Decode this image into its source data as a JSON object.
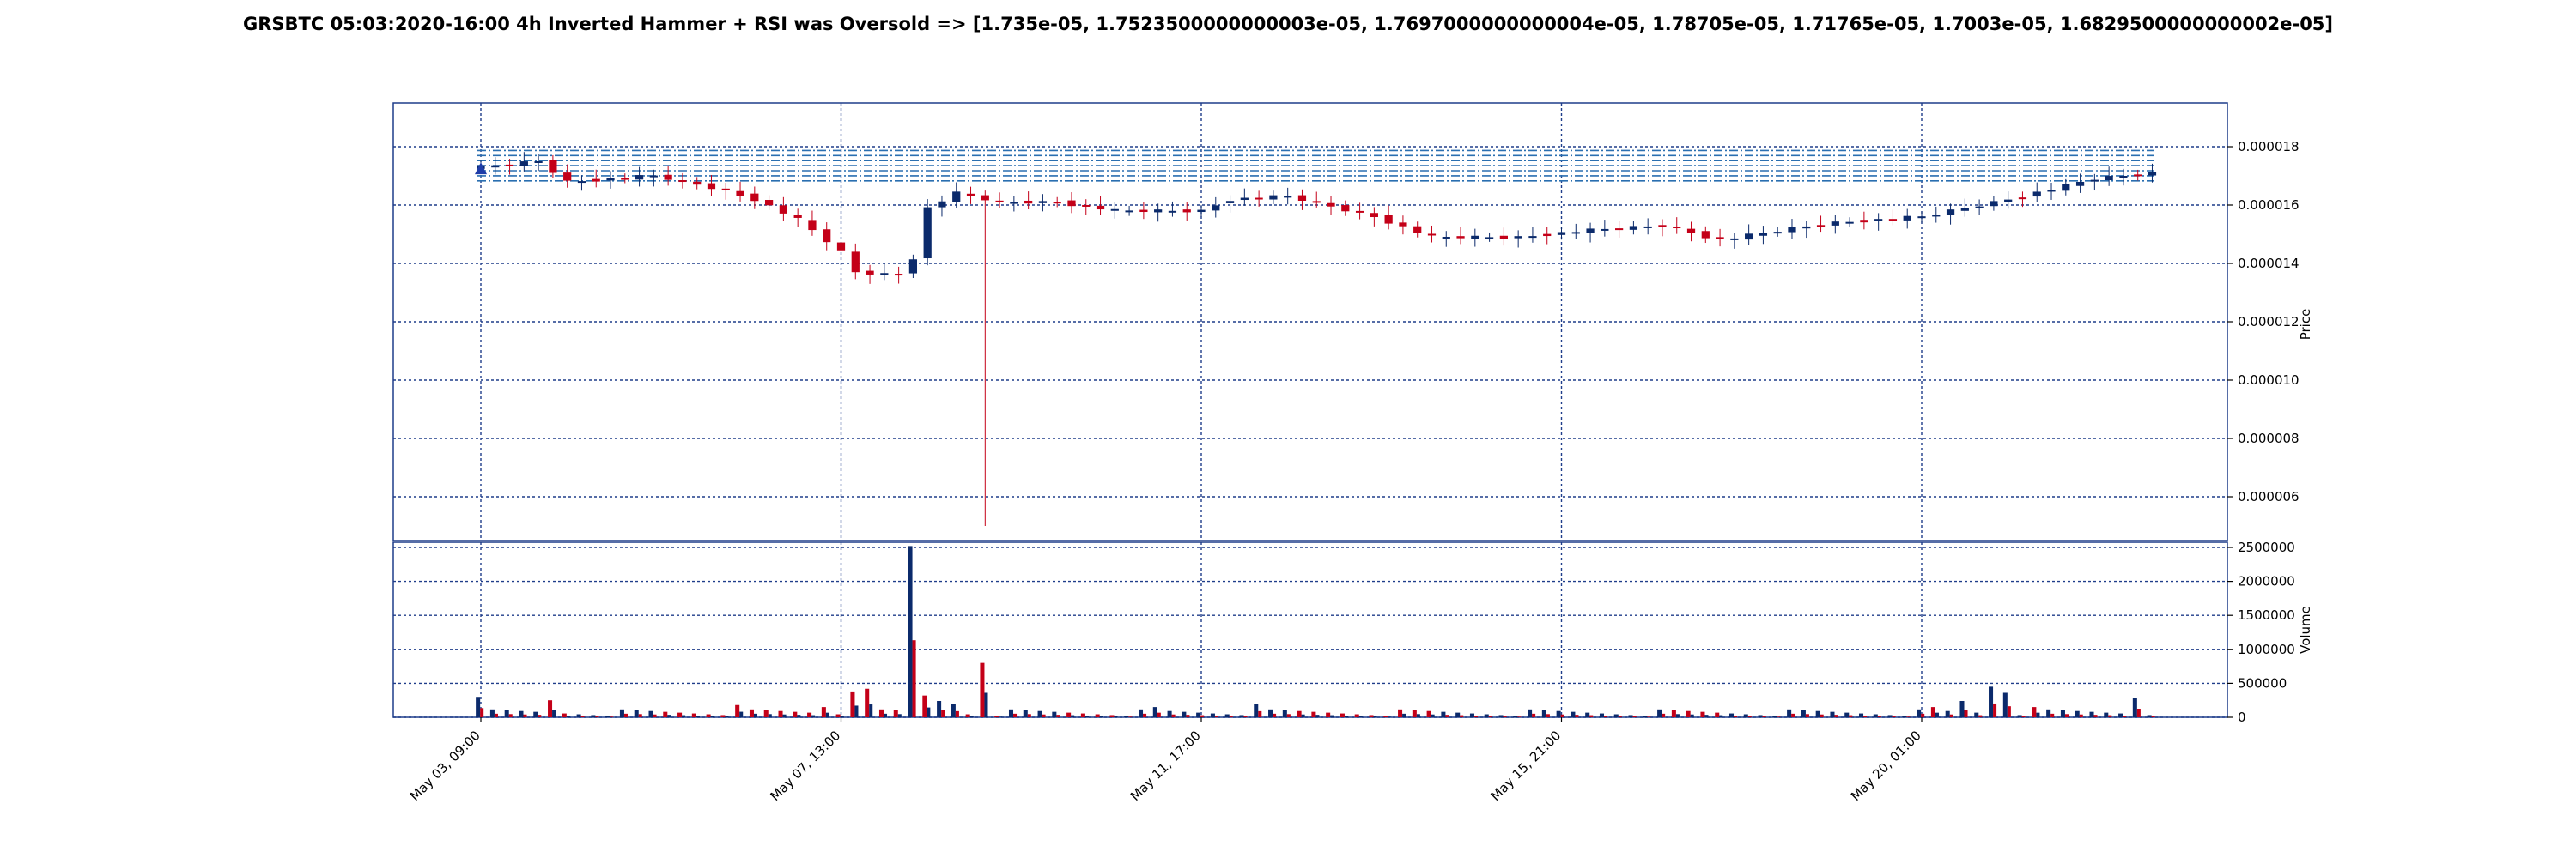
{
  "title": "GRSBTC 05:03:2020-16:00 4h Inverted Hammer + RSI was Oversold => [1.735e-05, 1.7523500000000003e-05, 1.7697000000000004e-05, 1.78705e-05, 1.71765e-05, 1.7003e-05, 1.6829500000000002e-05]",
  "colors": {
    "up": "#0b2a6b",
    "down": "#c40018",
    "grid": "#1f3d8a",
    "levels": "#2a6fb0",
    "marker": "#1f3da8"
  },
  "chart_data": [
    {
      "type": "candlestick",
      "ylabel": "Price",
      "ylim": [
        4.5e-06,
        1.95e-05
      ],
      "yticks": [
        "0.000006",
        "0.000008",
        "0.000010",
        "0.000012",
        "0.000014",
        "0.000016",
        "0.000018"
      ],
      "ytick_values": [
        6e-06,
        8e-06,
        1e-05,
        1.2e-05,
        1.4e-05,
        1.6e-05,
        1.8e-05
      ],
      "xticks": [
        "May 03, 09:00",
        "May 07, 13:00",
        "May 11, 17:00",
        "May 15, 21:00",
        "May 20, 01:00"
      ],
      "xtick_index": [
        0,
        25,
        50,
        75,
        100
      ],
      "levels": [
        1.735e-05,
        1.7523500000000003e-05,
        1.7697000000000004e-05,
        1.78705e-05,
        1.71765e-05,
        1.7003e-05,
        1.6829500000000002e-05
      ],
      "signal_index": 0,
      "close_path": [
        [
          0,
          1.73e-05
        ],
        [
          4,
          1.75e-05
        ],
        [
          6,
          1.68e-05
        ],
        [
          12,
          1.7e-05
        ],
        [
          16,
          1.66e-05
        ],
        [
          19,
          1.62e-05
        ],
        [
          22,
          1.55e-05
        ],
        [
          25,
          1.44e-05
        ],
        [
          26,
          1.37e-05
        ],
        [
          29,
          1.36e-05
        ],
        [
          30,
          1.42e-05
        ],
        [
          31,
          1.59e-05
        ],
        [
          33,
          1.64e-05
        ],
        [
          36,
          1.61e-05
        ],
        [
          40,
          1.61e-05
        ],
        [
          44,
          1.58e-05
        ],
        [
          50,
          1.58e-05
        ],
        [
          52,
          1.62e-05
        ],
        [
          56,
          1.63e-05
        ],
        [
          62,
          1.56e-05
        ],
        [
          66,
          1.49e-05
        ],
        [
          72,
          1.49e-05
        ],
        [
          76,
          1.51e-05
        ],
        [
          82,
          1.53e-05
        ],
        [
          86,
          1.48e-05
        ],
        [
          91,
          1.52e-05
        ],
        [
          94,
          1.54e-05
        ],
        [
          100,
          1.56e-05
        ],
        [
          106,
          1.62e-05
        ],
        [
          112,
          1.69e-05
        ],
        [
          116,
          1.71e-05
        ]
      ],
      "long_wick": {
        "index": 35,
        "low": 5e-06
      }
    },
    {
      "type": "bar",
      "ylabel": "Volume",
      "ylim": [
        0,
        2500000
      ],
      "yticks": [
        "0",
        "500000",
        "1000000",
        "1500000",
        "2000000",
        "2500000"
      ],
      "ytick_values": [
        0,
        500000,
        1000000,
        1500000,
        2000000,
        2500000
      ],
      "spikes": [
        [
          0,
          300000,
          "up"
        ],
        [
          5,
          250000,
          "down"
        ],
        [
          18,
          180000,
          "down"
        ],
        [
          24,
          150000,
          "down"
        ],
        [
          26,
          380000,
          "down"
        ],
        [
          27,
          420000,
          "down"
        ],
        [
          30,
          2520000,
          "up"
        ],
        [
          31,
          320000,
          "down"
        ],
        [
          32,
          240000,
          "up"
        ],
        [
          33,
          200000,
          "up"
        ],
        [
          35,
          800000,
          "down"
        ],
        [
          47,
          150000,
          "up"
        ],
        [
          54,
          200000,
          "up"
        ],
        [
          101,
          150000,
          "down"
        ],
        [
          103,
          240000,
          "up"
        ],
        [
          105,
          450000,
          "up"
        ],
        [
          106,
          360000,
          "up"
        ],
        [
          108,
          150000,
          "down"
        ],
        [
          115,
          280000,
          "up"
        ]
      ]
    }
  ]
}
